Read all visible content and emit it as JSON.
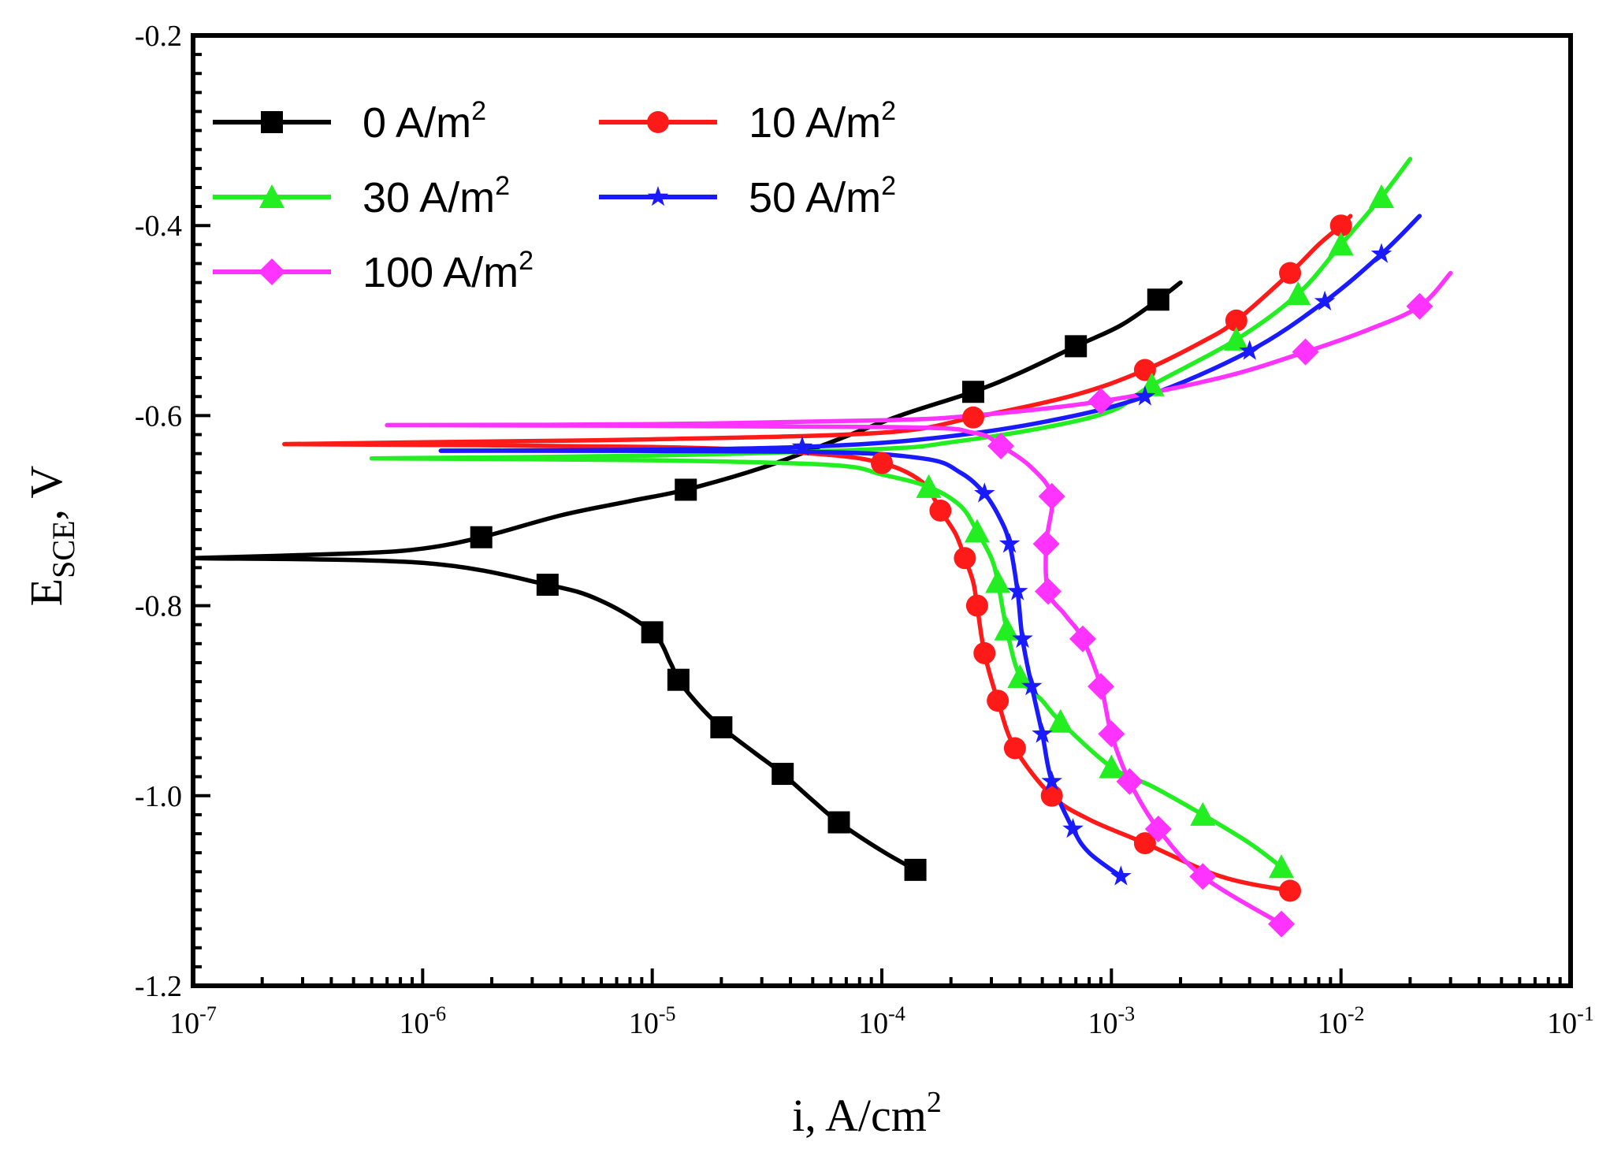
{
  "chart_data": {
    "type": "line",
    "title": "",
    "xlabel": {
      "main": "i, A/cm",
      "sup": "2"
    },
    "ylabel": {
      "main": "E",
      "sub": "SCE",
      "suffix": ", V"
    },
    "xscale": "log",
    "xlim": [
      1e-07,
      0.1
    ],
    "ylim": [
      -1.2,
      -0.2
    ],
    "xticks": [
      {
        "value": 1e-07,
        "base": "10",
        "exp": "-7"
      },
      {
        "value": 1e-06,
        "base": "10",
        "exp": "-6"
      },
      {
        "value": 1e-05,
        "base": "10",
        "exp": "-5"
      },
      {
        "value": 0.0001,
        "base": "10",
        "exp": "-4"
      },
      {
        "value": 0.001,
        "base": "10",
        "exp": "-3"
      },
      {
        "value": 0.01,
        "base": "10",
        "exp": "-2"
      },
      {
        "value": 0.1,
        "base": "10",
        "exp": "-1"
      }
    ],
    "yticks": [
      {
        "value": -0.2,
        "label": "-0.2"
      },
      {
        "value": -0.4,
        "label": "-0.4"
      },
      {
        "value": -0.6,
        "label": "-0.6"
      },
      {
        "value": -0.8,
        "label": "-0.8"
      },
      {
        "value": -1.0,
        "label": "-1.0"
      },
      {
        "value": -1.2,
        "label": "-1.2"
      }
    ],
    "legend": {
      "placement": "top-left",
      "columns": 2
    },
    "series": [
      {
        "name": "0 A/m",
        "sup": "2",
        "color": "#000000",
        "marker": "square",
        "anodic": [
          [
            1e-07,
            -0.75
          ],
          [
            5e-07,
            -0.745
          ],
          [
            1e-06,
            -0.74
          ],
          [
            1.8e-06,
            -0.728
          ],
          [
            4e-06,
            -0.705
          ],
          [
            8e-06,
            -0.69
          ],
          [
            1.4e-05,
            -0.678
          ],
          [
            3e-05,
            -0.655
          ],
          [
            6e-05,
            -0.628
          ],
          [
            0.00012,
            -0.6
          ],
          [
            0.00025,
            -0.575
          ],
          [
            0.0004,
            -0.555
          ],
          [
            0.0007,
            -0.527
          ],
          [
            0.0011,
            -0.505
          ],
          [
            0.0016,
            -0.478
          ],
          [
            0.002,
            -0.46
          ]
        ],
        "cathodic": [
          [
            1e-07,
            -0.75
          ],
          [
            1e-06,
            -0.755
          ],
          [
            3.5e-06,
            -0.778
          ],
          [
            6e-06,
            -0.795
          ],
          [
            1e-05,
            -0.828
          ],
          [
            1.2e-05,
            -0.86
          ],
          [
            1.3e-05,
            -0.878
          ],
          [
            1.6e-05,
            -0.905
          ],
          [
            2e-05,
            -0.928
          ],
          [
            2.8e-05,
            -0.955
          ],
          [
            3.7e-05,
            -0.977
          ],
          [
            5e-05,
            -1.005
          ],
          [
            6.5e-05,
            -1.028
          ],
          [
            0.0001,
            -1.058
          ],
          [
            0.00014,
            -1.078
          ]
        ],
        "markers": [
          [
            1.8e-06,
            -0.728
          ],
          [
            1.4e-05,
            -0.678
          ],
          [
            0.00025,
            -0.575
          ],
          [
            0.0007,
            -0.527
          ],
          [
            0.0016,
            -0.478
          ],
          [
            3.5e-06,
            -0.778
          ],
          [
            1e-05,
            -0.828
          ],
          [
            1.3e-05,
            -0.878
          ],
          [
            2e-05,
            -0.928
          ],
          [
            3.7e-05,
            -0.977
          ],
          [
            6.5e-05,
            -1.028
          ],
          [
            0.00014,
            -1.078
          ]
        ]
      },
      {
        "name": "10 A/m",
        "sup": "2",
        "color": "#ff1a1a",
        "marker": "circle",
        "anodic": [
          [
            2.5e-07,
            -0.63
          ],
          [
            1e-06,
            -0.628
          ],
          [
            1e-05,
            -0.625
          ],
          [
            0.0001,
            -0.618
          ],
          [
            0.00025,
            -0.602
          ],
          [
            0.0007,
            -0.578
          ],
          [
            0.0014,
            -0.552
          ],
          [
            0.0025,
            -0.522
          ],
          [
            0.0035,
            -0.5
          ],
          [
            0.006,
            -0.45
          ],
          [
            0.008,
            -0.42
          ],
          [
            0.01,
            -0.4
          ],
          [
            0.011,
            -0.39
          ]
        ],
        "cathodic": [
          [
            2.5e-07,
            -0.63
          ],
          [
            1e-05,
            -0.633
          ],
          [
            5e-05,
            -0.64
          ],
          [
            0.0001,
            -0.65
          ],
          [
            0.00015,
            -0.67
          ],
          [
            0.00018,
            -0.7
          ],
          [
            0.00021,
            -0.725
          ],
          [
            0.00023,
            -0.75
          ],
          [
            0.00025,
            -0.775
          ],
          [
            0.00026,
            -0.8
          ],
          [
            0.00028,
            -0.85
          ],
          [
            0.00032,
            -0.9
          ],
          [
            0.00038,
            -0.95
          ],
          [
            0.00055,
            -1.0
          ],
          [
            0.0008,
            -1.025
          ],
          [
            0.0014,
            -1.05
          ],
          [
            0.003,
            -1.085
          ],
          [
            0.006,
            -1.1
          ]
        ],
        "markers": [
          [
            0.00025,
            -0.602
          ],
          [
            0.0014,
            -0.552
          ],
          [
            0.0035,
            -0.5
          ],
          [
            0.006,
            -0.45
          ],
          [
            0.01,
            -0.4
          ],
          [
            0.0001,
            -0.65
          ],
          [
            0.00018,
            -0.7
          ],
          [
            0.00023,
            -0.75
          ],
          [
            0.00026,
            -0.8
          ],
          [
            0.00028,
            -0.85
          ],
          [
            0.00032,
            -0.9
          ],
          [
            0.00038,
            -0.95
          ],
          [
            0.00055,
            -1.0
          ],
          [
            0.0014,
            -1.05
          ],
          [
            0.006,
            -1.1
          ]
        ]
      },
      {
        "name": "30 A/m",
        "sup": "2",
        "color": "#22ee22",
        "marker": "triangle",
        "anodic": [
          [
            6e-07,
            -0.645
          ],
          [
            1e-05,
            -0.642
          ],
          [
            0.0001,
            -0.635
          ],
          [
            0.0002,
            -0.628
          ],
          [
            0.0005,
            -0.613
          ],
          [
            0.001,
            -0.595
          ],
          [
            0.0015,
            -0.568
          ],
          [
            0.0035,
            -0.52
          ],
          [
            0.0065,
            -0.472
          ],
          [
            0.01,
            -0.42
          ],
          [
            0.015,
            -0.37
          ],
          [
            0.02,
            -0.33
          ]
        ],
        "cathodic": [
          [
            6e-07,
            -0.645
          ],
          [
            1e-05,
            -0.647
          ],
          [
            6e-05,
            -0.652
          ],
          [
            0.0001,
            -0.662
          ],
          [
            0.00016,
            -0.675
          ],
          [
            0.00022,
            -0.695
          ],
          [
            0.00026,
            -0.722
          ],
          [
            0.0003,
            -0.75
          ],
          [
            0.00032,
            -0.775
          ],
          [
            0.00035,
            -0.825
          ],
          [
            0.0004,
            -0.875
          ],
          [
            0.0005,
            -0.9
          ],
          [
            0.0006,
            -0.922
          ],
          [
            0.001,
            -0.97
          ],
          [
            0.0015,
            -0.99
          ],
          [
            0.0025,
            -1.02
          ],
          [
            0.004,
            -1.05
          ],
          [
            0.0055,
            -1.075
          ]
        ],
        "markers": [
          [
            0.0015,
            -0.568
          ],
          [
            0.0035,
            -0.52
          ],
          [
            0.0065,
            -0.472
          ],
          [
            0.01,
            -0.42
          ],
          [
            0.015,
            -0.37
          ],
          [
            0.00016,
            -0.675
          ],
          [
            0.00026,
            -0.722
          ],
          [
            0.00032,
            -0.775
          ],
          [
            0.00035,
            -0.825
          ],
          [
            0.0004,
            -0.875
          ],
          [
            0.0006,
            -0.922
          ],
          [
            0.001,
            -0.97
          ],
          [
            0.0025,
            -1.02
          ],
          [
            0.0055,
            -1.075
          ]
        ]
      },
      {
        "name": "50 A/m",
        "sup": "2",
        "color": "#1a1aff",
        "marker": "star",
        "anodic": [
          [
            1.2e-06,
            -0.637
          ],
          [
            1e-05,
            -0.636
          ],
          [
            4.5e-05,
            -0.633
          ],
          [
            0.00015,
            -0.625
          ],
          [
            0.0005,
            -0.607
          ],
          [
            0.0014,
            -0.58
          ],
          [
            0.004,
            -0.532
          ],
          [
            0.0085,
            -0.48
          ],
          [
            0.015,
            -0.43
          ],
          [
            0.022,
            -0.39
          ]
        ],
        "cathodic": [
          [
            1.2e-06,
            -0.637
          ],
          [
            4.5e-05,
            -0.638
          ],
          [
            0.00015,
            -0.645
          ],
          [
            0.00022,
            -0.66
          ],
          [
            0.00028,
            -0.682
          ],
          [
            0.00033,
            -0.71
          ],
          [
            0.00036,
            -0.735
          ],
          [
            0.00039,
            -0.785
          ],
          [
            0.00041,
            -0.835
          ],
          [
            0.00045,
            -0.885
          ],
          [
            0.0005,
            -0.935
          ],
          [
            0.00055,
            -0.985
          ],
          [
            0.00068,
            -1.035
          ],
          [
            0.0008,
            -1.06
          ],
          [
            0.0011,
            -1.085
          ]
        ],
        "markers": [
          [
            4.5e-05,
            -0.633
          ],
          [
            0.0014,
            -0.58
          ],
          [
            0.004,
            -0.532
          ],
          [
            0.0085,
            -0.48
          ],
          [
            0.015,
            -0.43
          ],
          [
            0.00028,
            -0.682
          ],
          [
            0.00036,
            -0.735
          ],
          [
            0.00039,
            -0.785
          ],
          [
            0.00041,
            -0.835
          ],
          [
            0.00045,
            -0.885
          ],
          [
            0.0005,
            -0.935
          ],
          [
            0.00055,
            -0.985
          ],
          [
            0.00068,
            -1.035
          ],
          [
            0.0011,
            -1.085
          ]
        ]
      },
      {
        "name": "100 A/m",
        "sup": "2",
        "color": "#ff33ff",
        "marker": "diamond",
        "anodic": [
          [
            7e-07,
            -0.61
          ],
          [
            1e-05,
            -0.609
          ],
          [
            0.0001,
            -0.605
          ],
          [
            0.00025,
            -0.6
          ],
          [
            0.0009,
            -0.585
          ],
          [
            0.003,
            -0.56
          ],
          [
            0.007,
            -0.533
          ],
          [
            0.013,
            -0.51
          ],
          [
            0.022,
            -0.485
          ],
          [
            0.03,
            -0.45
          ]
        ],
        "cathodic": [
          [
            7e-07,
            -0.61
          ],
          [
            0.0001,
            -0.612
          ],
          [
            0.00025,
            -0.618
          ],
          [
            0.00033,
            -0.632
          ],
          [
            0.00045,
            -0.655
          ],
          [
            0.00055,
            -0.685
          ],
          [
            0.00052,
            -0.735
          ],
          [
            0.00053,
            -0.785
          ],
          [
            0.00063,
            -0.81
          ],
          [
            0.00075,
            -0.835
          ],
          [
            0.0009,
            -0.885
          ],
          [
            0.001,
            -0.935
          ],
          [
            0.0012,
            -0.985
          ],
          [
            0.0016,
            -1.035
          ],
          [
            0.0025,
            -1.085
          ],
          [
            0.0055,
            -1.135
          ]
        ],
        "markers": [
          [
            0.0009,
            -0.585
          ],
          [
            0.007,
            -0.533
          ],
          [
            0.022,
            -0.485
          ],
          [
            0.00033,
            -0.632
          ],
          [
            0.00055,
            -0.685
          ],
          [
            0.00052,
            -0.735
          ],
          [
            0.00053,
            -0.785
          ],
          [
            0.00075,
            -0.835
          ],
          [
            0.0009,
            -0.885
          ],
          [
            0.001,
            -0.935
          ],
          [
            0.0012,
            -0.985
          ],
          [
            0.0016,
            -1.035
          ],
          [
            0.0025,
            -1.085
          ],
          [
            0.0055,
            -1.135
          ]
        ]
      }
    ]
  }
}
